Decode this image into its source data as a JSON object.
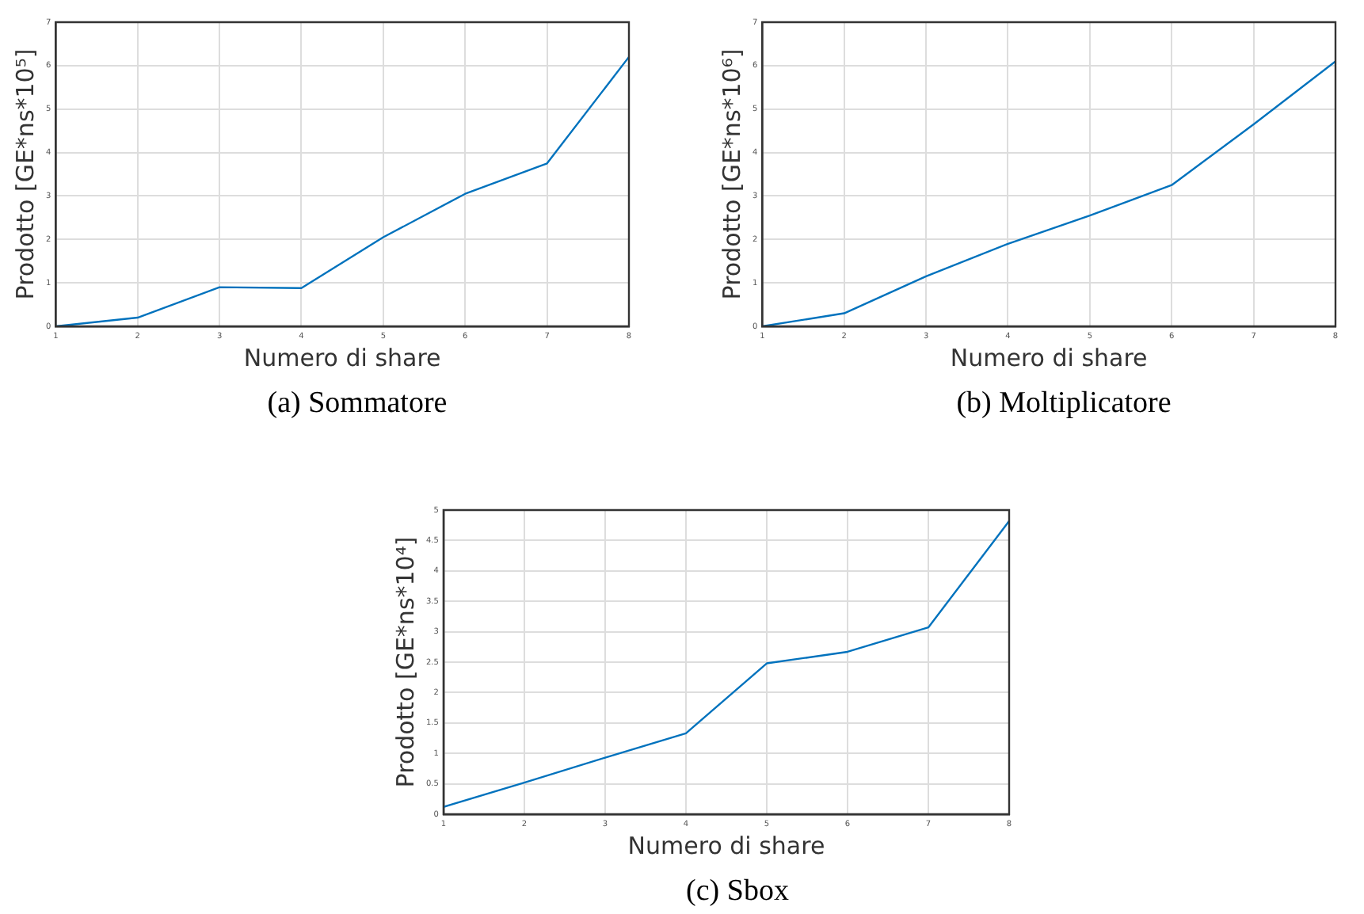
{
  "chart_data": [
    {
      "type": "line",
      "title": "(a) Sommatore",
      "xlabel": "Numero di share",
      "ylabel": "Prodotto [GE*ns*10⁵]",
      "x": [
        1,
        2,
        3,
        4,
        5,
        6,
        7,
        8
      ],
      "values": [
        0,
        0.2,
        0.9,
        0.88,
        2.05,
        3.05,
        3.75,
        6.2
      ],
      "color": "#0072bd",
      "xlim": [
        1,
        8
      ],
      "xticks": [
        1,
        2,
        3,
        4,
        5,
        6,
        7,
        8
      ],
      "ylim": [
        0,
        7
      ],
      "yticks": [
        0,
        1,
        2,
        3,
        4,
        5,
        6,
        7
      ],
      "grid": true,
      "marker": "none"
    },
    {
      "type": "line",
      "title": "(b) Moltiplicatore",
      "xlabel": "Numero di share",
      "ylabel": "Prodotto [GE*ns*10⁶]",
      "x": [
        1,
        2,
        3,
        4,
        5,
        6,
        7,
        8
      ],
      "values": [
        0,
        0.3,
        1.15,
        1.9,
        2.55,
        3.25,
        4.65,
        6.1
      ],
      "color": "#0072bd",
      "xlim": [
        1,
        8
      ],
      "xticks": [
        1,
        2,
        3,
        4,
        5,
        6,
        7,
        8
      ],
      "ylim": [
        0,
        7
      ],
      "yticks": [
        0,
        1,
        2,
        3,
        4,
        5,
        6,
        7
      ],
      "grid": true,
      "marker": "none"
    },
    {
      "type": "line",
      "title": "(c) Sbox",
      "xlabel": "Numero di share",
      "ylabel": "Prodotto [GE*ns*10⁴]",
      "x": [
        1,
        2,
        3,
        4,
        5,
        6,
        7,
        8
      ],
      "values": [
        0.12,
        0.52,
        0.93,
        1.33,
        2.48,
        2.67,
        3.07,
        4.82
      ],
      "color": "#0072bd",
      "xlim": [
        1,
        8
      ],
      "xticks": [
        1,
        2,
        3,
        4,
        5,
        6,
        7,
        8
      ],
      "ylim": [
        0,
        5
      ],
      "yticks": [
        0,
        0.5,
        1,
        1.5,
        2,
        2.5,
        3,
        3.5,
        4,
        4.5,
        5
      ],
      "grid": true,
      "marker": "none"
    }
  ]
}
